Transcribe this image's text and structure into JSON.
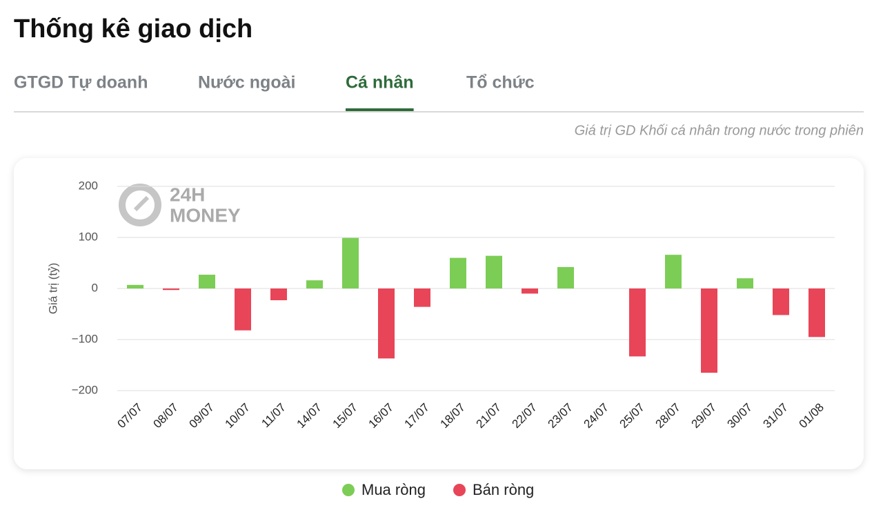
{
  "page": {
    "title": "Thống kê giao dịch",
    "tabs": [
      "GTGD Tự doanh",
      "Nước ngoài",
      "Cá nhân",
      "Tổ chức"
    ],
    "active_tab": 2,
    "caption": "Giá trị GD Khối cá nhân trong nước trong phiên",
    "watermark": [
      "24H",
      "MONEY"
    ]
  },
  "chart_data": {
    "type": "bar",
    "y_label": "Giá trị (tỷ)",
    "categories": [
      "07/07",
      "08/07",
      "09/07",
      "10/07",
      "11/07",
      "14/07",
      "15/07",
      "16/07",
      "17/07",
      "18/07",
      "21/07",
      "22/07",
      "23/07",
      "24/07",
      "25/07",
      "28/07",
      "29/07",
      "30/07",
      "31/07",
      "01/08"
    ],
    "series": [
      {
        "name": "Mua ròng",
        "color": "#7ccd55",
        "values": [
          7,
          null,
          27,
          null,
          null,
          16,
          99,
          null,
          null,
          60,
          64,
          null,
          42,
          null,
          null,
          66,
          null,
          20,
          null,
          null
        ]
      },
      {
        "name": "Bán ròng",
        "color": "#e84558",
        "values": [
          null,
          -3,
          null,
          -82,
          -23,
          null,
          null,
          -137,
          -36,
          null,
          null,
          -10,
          null,
          null,
          -133,
          null,
          -165,
          null,
          -52,
          -95
        ]
      }
    ],
    "ylim": [
      -200,
      200
    ],
    "yticks": [
      {
        "value": -200,
        "label": "−200"
      },
      {
        "value": -100,
        "label": "−100"
      },
      0,
      100,
      200
    ],
    "grid": true
  }
}
